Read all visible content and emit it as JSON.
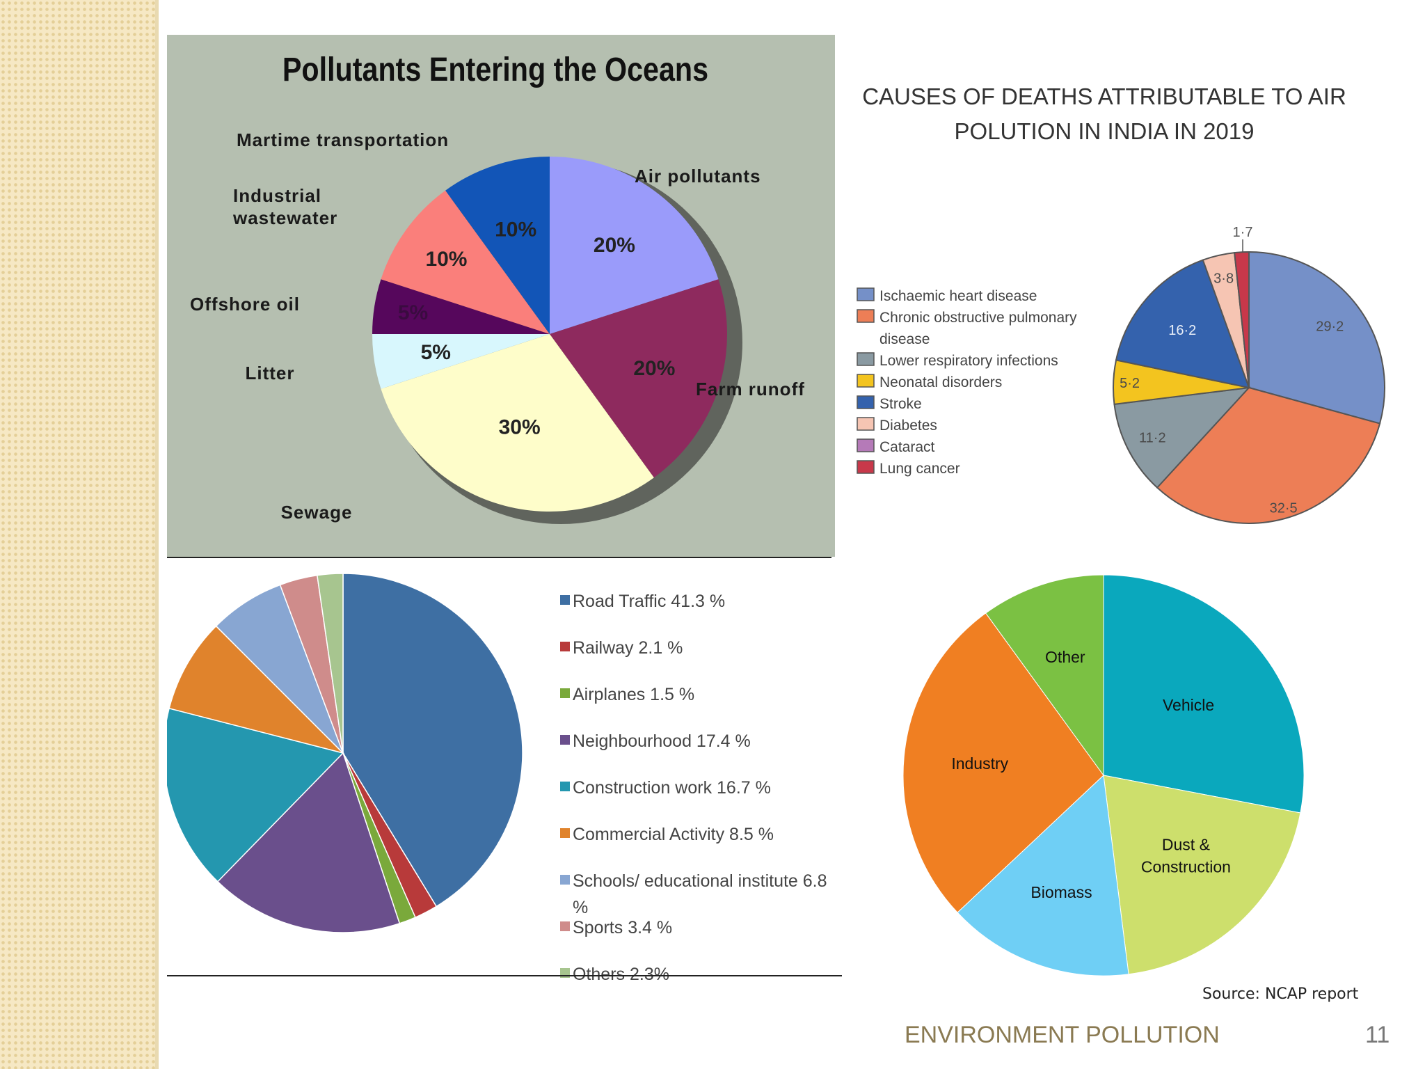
{
  "slide": {
    "footer_title": "ENVIRONMENT POLLUTION",
    "page_number": "11",
    "source": "Source: NCAP report"
  },
  "chart_data": [
    {
      "type": "pie",
      "title": "Pollutants Entering the Oceans",
      "slices": [
        {
          "label": "Air pollutants",
          "value": 20,
          "display": "20%",
          "color": "#9a9bfa"
        },
        {
          "label": "Farm runoff",
          "value": 20,
          "display": "20%",
          "color": "#8e2a5e"
        },
        {
          "label": "Sewage",
          "value": 30,
          "display": "30%",
          "color": "#fefdca"
        },
        {
          "label": "Litter",
          "value": 5,
          "display": "5%",
          "color": "#d8f7fd"
        },
        {
          "label": "Offshore oil",
          "value": 5,
          "display": "5%",
          "color": "#56075c"
        },
        {
          "label": "Industrial wastewater",
          "value": 10,
          "display": "10%",
          "color": "#fa7f7b"
        },
        {
          "label": "Martime transportation",
          "value": 10,
          "display": "10%",
          "color": "#1255b7"
        }
      ]
    },
    {
      "type": "pie",
      "title": "CAUSES OF DEATHS ATTRIBUTABLE TO AIR POLUTION IN INDIA IN 2019",
      "legend_position": "left",
      "slices": [
        {
          "label": "Ischaemic heart disease",
          "value": 29.2,
          "display": "29·2",
          "color": "#7590c8"
        },
        {
          "label": "Chronic obstructive pulmonary disease",
          "value": 32.5,
          "display": "32·5",
          "color": "#ed7e56"
        },
        {
          "label": "Lower respiratory infections",
          "value": 11.2,
          "display": "11·2",
          "color": "#8a9aa2"
        },
        {
          "label": "Neonatal disorders",
          "value": 5.2,
          "display": "5·2",
          "color": "#f3c41f"
        },
        {
          "label": "Stroke",
          "value": 16.2,
          "display": "16·2",
          "color": "#3462ad"
        },
        {
          "label": "Diabetes",
          "value": 3.8,
          "display": "3·8",
          "color": "#f6c5b3"
        },
        {
          "label": "Cataract",
          "value": 0,
          "display": "",
          "color": "#b57ab8"
        },
        {
          "label": "Lung cancer",
          "value": 1.7,
          "display": "1·7",
          "color": "#c8384a"
        }
      ]
    },
    {
      "type": "pie",
      "legend_position": "right",
      "slices": [
        {
          "legend": "Road Traffic 41.3 %",
          "value": 41.3,
          "color": "#3e6fa3"
        },
        {
          "legend": "Railway 2.1 %",
          "value": 2.1,
          "color": "#b83a3a"
        },
        {
          "legend": "Airplanes 1.5 %",
          "value": 1.5,
          "color": "#7aa93b"
        },
        {
          "legend": "Neighbourhood 17.4 %",
          "value": 17.4,
          "color": "#6a4f8c"
        },
        {
          "legend": "Construction work 16.7 %",
          "value": 16.7,
          "color": "#2497af"
        },
        {
          "legend": "Commercial Activity 8.5 %",
          "value": 8.5,
          "color": "#e0832c"
        },
        {
          "legend": "Schools/ educational institute 6.8 %",
          "value": 6.8,
          "color": "#88a6d2"
        },
        {
          "legend": "Sports 3.4 %",
          "value": 3.4,
          "color": "#cf8c8b"
        },
        {
          "legend": "Others 2.3%",
          "value": 2.3,
          "color": "#a7c58f"
        }
      ]
    },
    {
      "type": "pie",
      "slices": [
        {
          "label": "Vehicle",
          "value": 28,
          "color": "#0aa8bd"
        },
        {
          "label": "Dust & Construction",
          "value": 20,
          "color": "#cddf6c"
        },
        {
          "label": "Biomass",
          "value": 15,
          "color": "#6fcff5"
        },
        {
          "label": "Industry",
          "value": 27,
          "color": "#f07f22"
        },
        {
          "label": "Other",
          "value": 10,
          "color": "#7bc143"
        }
      ]
    }
  ]
}
